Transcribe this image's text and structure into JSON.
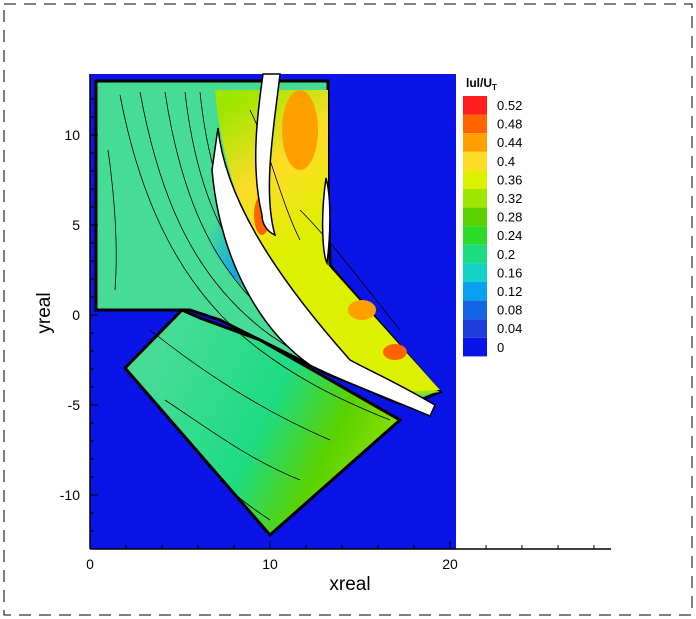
{
  "chart_data": {
    "type": "heatmap",
    "xlabel": "xreal",
    "ylabel": "yreal",
    "xlim": [
      0,
      29
    ],
    "ylim": [
      -13,
      13.5
    ],
    "x_ticks": [
      0,
      10,
      20
    ],
    "y_ticks": [
      10,
      5,
      0,
      -5,
      -10
    ],
    "colorbar": {
      "title_main": "lul/U",
      "title_sub": "T",
      "levels": [
        0.52,
        0.48,
        0.44,
        0.4,
        0.36,
        0.32,
        0.28,
        0.24,
        0.2,
        0.16,
        0.12,
        0.08,
        0.04,
        0
      ],
      "colors": [
        "#ff1e1e",
        "#ff6400",
        "#ffa000",
        "#ffdc28",
        "#dcf000",
        "#a0e600",
        "#5ad200",
        "#28dc28",
        "#1edc82",
        "#14d2c8",
        "#0aa0f0",
        "#1464e6",
        "#1e3cdc",
        "#0a14e6"
      ]
    },
    "background_color": "#0a14e6",
    "domain_color": "#46dc96"
  }
}
